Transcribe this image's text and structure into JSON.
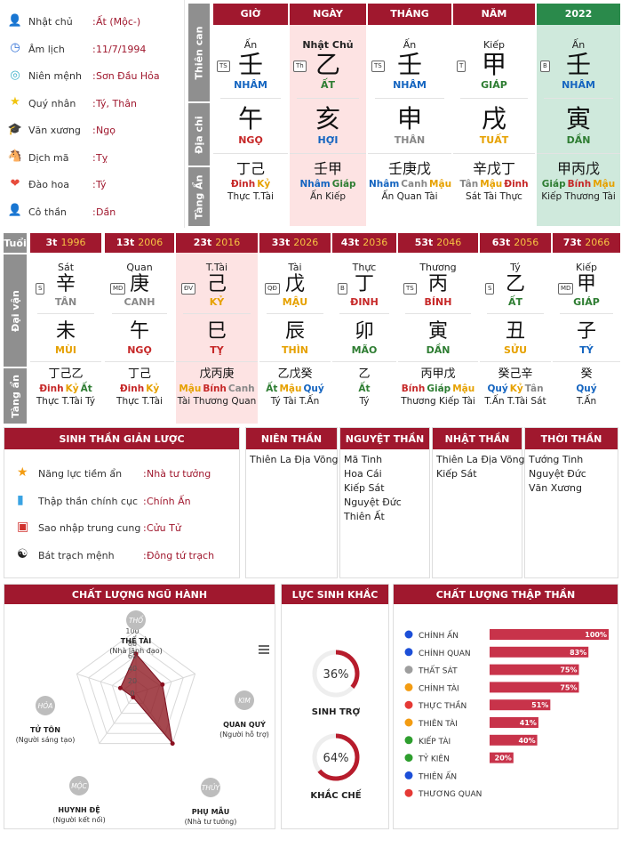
{
  "profile": [
    {
      "icon": "user-icon",
      "label": "Nhật chủ",
      "value": "Ất (Mộc-)"
    },
    {
      "icon": "clock-icon",
      "label": "Âm lịch",
      "value": "11/7/1994"
    },
    {
      "icon": "globe-icon",
      "label": "Niên mệnh",
      "value": "Sơn Đầu Hỏa"
    },
    {
      "icon": "star-icon",
      "label": "Quý nhân",
      "value": "Tý, Thân"
    },
    {
      "icon": "graduation-cap-icon",
      "label": "Văn xương",
      "value": "Ngọ"
    },
    {
      "icon": "horse-icon",
      "label": "Dịch mã",
      "value": "Tỵ"
    },
    {
      "icon": "heart-icon",
      "label": "Đào hoa",
      "value": "Tý"
    },
    {
      "icon": "person-icon",
      "label": "Cô thần",
      "value": "Dần"
    }
  ],
  "pillars_labels": {
    "thien_can": "Thiên can",
    "dia_chi": "Địa chi",
    "tang_an": "Tàng Ẩn"
  },
  "pillars": [
    {
      "header": "GIỜ",
      "god": "Ấn",
      "badge": "TS",
      "stem": "壬",
      "stem_name": "NHÂM",
      "stem_color": "#1565c0",
      "branch": "午",
      "branch_name": "NGỌ",
      "branch_color": "#c62828",
      "hidden": "丁己",
      "hidden_names": [
        {
          "t": "Đinh",
          "c": "#c62828"
        },
        {
          "t": "Kỷ",
          "c": "#e6a100"
        }
      ],
      "hidden_gods": "Thực T.Tài"
    },
    {
      "header": "NGÀY",
      "god": "Nhật Chủ",
      "badge": "Th",
      "stem": "乙",
      "stem_name": "ẤT",
      "stem_color": "#2e7d32",
      "branch": "亥",
      "branch_name": "HỢI",
      "branch_color": "#1565c0",
      "hidden": "壬甲",
      "hidden_names": [
        {
          "t": "Nhâm",
          "c": "#1565c0"
        },
        {
          "t": "Giáp",
          "c": "#2e7d32"
        }
      ],
      "hidden_gods": "Ấn Kiếp"
    },
    {
      "header": "THÁNG",
      "god": "Ấn",
      "badge": "TS",
      "stem": "壬",
      "stem_name": "NHÂM",
      "stem_color": "#1565c0",
      "branch": "申",
      "branch_name": "THÂN",
      "branch_color": "#888888",
      "hidden": "壬庚戊",
      "hidden_names": [
        {
          "t": "Nhâm",
          "c": "#1565c0"
        },
        {
          "t": "Canh",
          "c": "#888888"
        },
        {
          "t": "Mậu",
          "c": "#e6a100"
        }
      ],
      "hidden_gods": "Ấn Quan Tài"
    },
    {
      "header": "NĂM",
      "god": "Kiếp",
      "badge": "T",
      "stem": "甲",
      "stem_name": "GIÁP",
      "stem_color": "#2e7d32",
      "branch": "戌",
      "branch_name": "TUẤT",
      "branch_color": "#e6a100",
      "hidden": "辛戊丁",
      "hidden_names": [
        {
          "t": "Tân",
          "c": "#888888"
        },
        {
          "t": "Mậu",
          "c": "#e6a100"
        },
        {
          "t": "Đinh",
          "c": "#c62828"
        }
      ],
      "hidden_gods": "Sát Tài Thực"
    },
    {
      "header": "2022",
      "god": "Ấn",
      "badge": "B",
      "stem": "壬",
      "stem_name": "NHÂM",
      "stem_color": "#1565c0",
      "branch": "寅",
      "branch_name": "DẦN",
      "branch_color": "#2e7d32",
      "hidden": "甲丙戊",
      "hidden_names": [
        {
          "t": "Giáp",
          "c": "#2e7d32"
        },
        {
          "t": "Bính",
          "c": "#c62828"
        },
        {
          "t": "Mậu",
          "c": "#e6a100"
        }
      ],
      "hidden_gods": "Kiếp Thương Tài"
    }
  ],
  "luck_labels": {
    "tuoi": "Tuổi",
    "dai_van": "Đại vận",
    "tang_an": "Tàng ẩn"
  },
  "luck": [
    {
      "age": "3t",
      "year": "1996",
      "god": "Sát",
      "badge": "S",
      "stem": "辛",
      "stem_name": "TÂN",
      "stem_color": "#888888",
      "branch": "未",
      "branch_name": "MÙI",
      "branch_color": "#e6a100",
      "hidden": "丁己乙",
      "hidden_names": [
        {
          "t": "Đinh",
          "c": "#c62828"
        },
        {
          "t": "Kỷ",
          "c": "#e6a100"
        },
        {
          "t": "Ất",
          "c": "#2e7d32"
        }
      ],
      "hidden_gods": "Thực T.Tài Tý"
    },
    {
      "age": "13t",
      "year": "2006",
      "god": "Quan",
      "badge": "MD",
      "stem": "庚",
      "stem_name": "CANH",
      "stem_color": "#888888",
      "branch": "午",
      "branch_name": "NGỌ",
      "branch_color": "#c62828",
      "hidden": "丁己",
      "hidden_names": [
        {
          "t": "Đinh",
          "c": "#c62828"
        },
        {
          "t": "Kỷ",
          "c": "#e6a100"
        }
      ],
      "hidden_gods": "Thực T.Tài"
    },
    {
      "age": "23t",
      "year": "2016",
      "god": "T.Tài",
      "badge": "ĐV",
      "stem": "己",
      "stem_name": "KỶ",
      "stem_color": "#e6a100",
      "branch": "巳",
      "branch_name": "TỴ",
      "branch_color": "#c62828",
      "hidden": "戊丙庚",
      "hidden_names": [
        {
          "t": "Mậu",
          "c": "#e6a100"
        },
        {
          "t": "Bính",
          "c": "#c62828"
        },
        {
          "t": "Canh",
          "c": "#888888"
        }
      ],
      "hidden_gods": "Tài Thương Quan"
    },
    {
      "age": "33t",
      "year": "2026",
      "god": "Tài",
      "badge": "QĐ",
      "stem": "戊",
      "stem_name": "MẬU",
      "stem_color": "#e6a100",
      "branch": "辰",
      "branch_name": "THÌN",
      "branch_color": "#e6a100",
      "hidden": "乙戊癸",
      "hidden_names": [
        {
          "t": "Ất",
          "c": "#2e7d32"
        },
        {
          "t": "Mậu",
          "c": "#e6a100"
        },
        {
          "t": "Quý",
          "c": "#1565c0"
        }
      ],
      "hidden_gods": "Tý Tài T.Ấn"
    },
    {
      "age": "43t",
      "year": "2036",
      "god": "Thực",
      "badge": "B",
      "stem": "丁",
      "stem_name": "ĐINH",
      "stem_color": "#c62828",
      "branch": "卯",
      "branch_name": "MÃO",
      "branch_color": "#2e7d32",
      "hidden": "乙",
      "hidden_names": [
        {
          "t": "Ất",
          "c": "#2e7d32"
        }
      ],
      "hidden_gods": "Tý"
    },
    {
      "age": "53t",
      "year": "2046",
      "god": "Thương",
      "badge": "TS",
      "stem": "丙",
      "stem_name": "BÍNH",
      "stem_color": "#c62828",
      "branch": "寅",
      "branch_name": "DẦN",
      "branch_color": "#2e7d32",
      "hidden": "丙甲戊",
      "hidden_names": [
        {
          "t": "Bính",
          "c": "#c62828"
        },
        {
          "t": "Giáp",
          "c": "#2e7d32"
        },
        {
          "t": "Mậu",
          "c": "#e6a100"
        }
      ],
      "hidden_gods": "Thương Kiếp Tài"
    },
    {
      "age": "63t",
      "year": "2056",
      "god": "Tý",
      "badge": "S",
      "stem": "乙",
      "stem_name": "ẤT",
      "stem_color": "#2e7d32",
      "branch": "丑",
      "branch_name": "SỬU",
      "branch_color": "#e6a100",
      "hidden": "癸己辛",
      "hidden_names": [
        {
          "t": "Quý",
          "c": "#1565c0"
        },
        {
          "t": "Kỷ",
          "c": "#e6a100"
        },
        {
          "t": "Tân",
          "c": "#888888"
        }
      ],
      "hidden_gods": "T.Ấn T.Tài Sát"
    },
    {
      "age": "73t",
      "year": "2066",
      "god": "Kiếp",
      "badge": "MD",
      "stem": "甲",
      "stem_name": "GIÁP",
      "stem_color": "#2e7d32",
      "branch": "子",
      "branch_name": "TÝ",
      "branch_color": "#1565c0",
      "hidden": "癸",
      "hidden_names": [
        {
          "t": "Quý",
          "c": "#1565c0"
        }
      ],
      "hidden_gods": "T.Ấn"
    }
  ],
  "summary": {
    "title": "SINH THẦN GIẢN LƯỢC",
    "rows": [
      {
        "icon": "star-circle-icon",
        "label": "Năng lực tiềm ẩn",
        "value": "Nhà tư tưởng"
      },
      {
        "icon": "bar-chart-icon",
        "label": "Thập thần chính cục",
        "value": "Chính Ấn"
      },
      {
        "icon": "red-card-icon",
        "label": "Sao nhập trung cung",
        "value": "Cửu Tử"
      },
      {
        "icon": "yin-yang-icon",
        "label": "Bát trạch mệnh",
        "value": "Đông tứ trạch"
      }
    ]
  },
  "stars": [
    {
      "title": "NIÊN THẦN",
      "items": [
        "Thiên La Địa Võng"
      ]
    },
    {
      "title": "NGUYỆT THẦN",
      "items": [
        "Mã Tinh",
        "Hoa Cái",
        "Kiếp Sát",
        "Nguyệt Đức",
        "Thiên Ất"
      ]
    },
    {
      "title": "NHẬT THẦN",
      "items": [
        "Thiên La Địa Võng",
        "Kiếp Sát"
      ]
    },
    {
      "title": "THỜI THẦN",
      "items": [
        "Tướng Tinh",
        "Nguyệt Đức",
        "Văn Xương"
      ]
    }
  ],
  "five_elements": {
    "title": "CHẤT LƯỢNG NGŨ HÀNH",
    "nodes": [
      {
        "element": "THỔ",
        "name": "THẾ TÀI",
        "desc": "(Nhà lãnh đạo)"
      },
      {
        "element": "KIM",
        "name": "QUAN QUÝ",
        "desc": "(Người hỗ trợ)"
      },
      {
        "element": "THỦY",
        "name": "PHỤ MẪU",
        "desc": "(Nhà tư tưởng)"
      },
      {
        "element": "MỘC",
        "name": "HUYNH ĐỆ",
        "desc": "(Người kết nối)"
      },
      {
        "element": "HỎA",
        "name": "TỬ TÔN",
        "desc": "(Người sáng tạo)"
      }
    ]
  },
  "chart_data": [
    {
      "type": "radar",
      "categories": [
        "THẾ TÀI",
        "QUAN QUÝ",
        "PHỤ MẪU",
        "HUYNH ĐỆ",
        "TỬ TÔN"
      ],
      "values": [
        60,
        40,
        100,
        0,
        20
      ],
      "ticks": [
        "100",
        "80",
        "60",
        "40",
        "20",
        "0"
      ],
      "ylim": [
        0,
        100
      ]
    },
    {
      "type": "donut",
      "label": "SINH TRỢ",
      "value": 36,
      "text": "36%"
    },
    {
      "type": "donut",
      "label": "KHẮC CHẾ",
      "value": 64,
      "text": "64%"
    },
    {
      "type": "bar",
      "title": "CHẤT LƯỢNG THẬP THẦN",
      "categories": [
        "CHÍNH ẤN",
        "CHÍNH QUAN",
        "THẤT SÁT",
        "CHÍNH TÀI",
        "THỰC THẦN",
        "THIÊN TÀI",
        "KIẾP TÀI",
        "TỶ KIÊN",
        "THIÊN ẤN",
        "THƯƠNG QUAN"
      ],
      "values": [
        100,
        83,
        75,
        75,
        51,
        41,
        40,
        20,
        0,
        0
      ],
      "labels": [
        "100%",
        "83%",
        "75%",
        "75%",
        "51%",
        "41%",
        "40%",
        "20%",
        "",
        ""
      ],
      "dot_colors": [
        "#1c4fd8",
        "#1c4fd8",
        "#9e9e9e",
        "#f39c12",
        "#e53935",
        "#f39c12",
        "#2e9e2e",
        "#2e9e2e",
        "#1c4fd8",
        "#e53935"
      ]
    }
  ],
  "force_title": "LỰC SINH KHẮC",
  "colors": {
    "accent": "#a0182e",
    "bar": "#c8334a"
  }
}
